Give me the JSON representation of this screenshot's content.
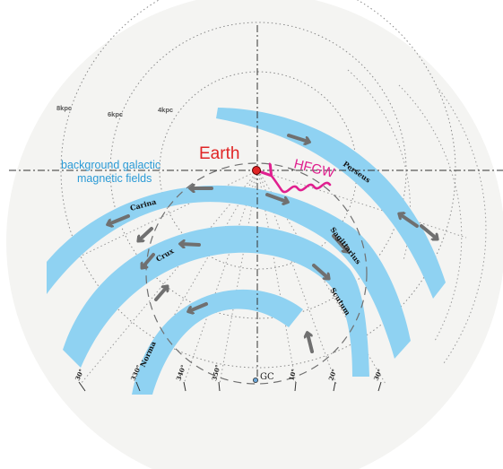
{
  "labels": {
    "earth": "Earth",
    "hfgw": "HFGW",
    "background_fields_line1": "background galactic",
    "background_fields_line2": "magnetic fields",
    "gc": "GC",
    "arms": {
      "perseus": "Perseus",
      "sagittarius": "Sagittarius",
      "scutum": "Scutum",
      "carina": "Carina",
      "crux": "Crux",
      "norma": "Norma"
    },
    "radii": {
      "kpc8": "8kpc",
      "kpc6": "6kpc",
      "kpc4": "4kpc"
    },
    "longitudes": {
      "deg330": "330°",
      "deg340": "340°",
      "deg350": "350°",
      "deg10": "10°",
      "deg20": "20°",
      "deg30": "30°",
      "deg_left_edge": "30°"
    }
  },
  "colors": {
    "arm_fill": "#8fd2f2",
    "arrow": "#707070",
    "earth_red": "#e02525",
    "hfgw_magenta": "#e0208f",
    "fields_label_blue": "#2a9ad6",
    "disk_bg": "#f4f4f2",
    "dotted_circle": "#8a8a8a"
  }
}
